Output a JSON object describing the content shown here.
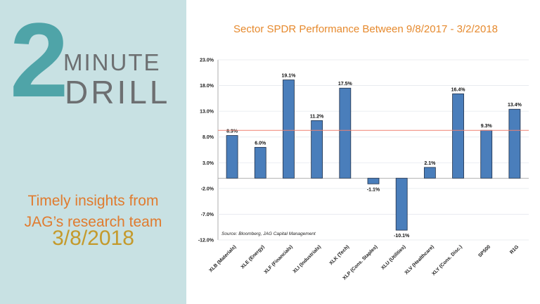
{
  "brand": {
    "number": "2",
    "word1": "MINUTE",
    "word2": "DRILL"
  },
  "tagline": {
    "line1": "Timely insights from",
    "line2": "JAG’s research team"
  },
  "date": "3/8/2018",
  "chart_data": {
    "type": "bar",
    "title": "Sector SPDR Performance Between 9/8/2017 - 3/2/2018",
    "categories": [
      "XLB (Materials)",
      "XLE (Energy)",
      "XLF (Financials)",
      "XLI (Industrials)",
      "XLK (Tech)",
      "XLP (Cons. Staples)",
      "XLU (Utilities)",
      "XLV (Healthcare)",
      "XLY (Cons. Disc.)",
      "SP500",
      "R1G"
    ],
    "values": [
      8.3,
      6.0,
      19.1,
      11.2,
      17.5,
      -1.1,
      -10.1,
      2.1,
      16.4,
      9.3,
      13.4
    ],
    "data_labels": [
      "8.3%",
      "6.0%",
      "19.1%",
      "11.2%",
      "17.5%",
      "-1.1%",
      "-10.1%",
      "2.1%",
      "16.4%",
      "9.3%",
      "13.4%"
    ],
    "yticks": [
      23.0,
      18.0,
      13.0,
      8.0,
      3.0,
      -2.0,
      -7.0,
      -12.0
    ],
    "ytick_labels": [
      "23.0%",
      "18.0%",
      "13.0%",
      "8.0%",
      "3.0%",
      "-2.0%",
      "-7.0%",
      "-12.0%"
    ],
    "ylim": [
      -12,
      23
    ],
    "reference_line": 9.3,
    "source": "Source: Bloomberg, JAG Capital Management",
    "grid": true,
    "colors": {
      "bar": "#4a7ebb",
      "reference": "#f08070"
    }
  }
}
